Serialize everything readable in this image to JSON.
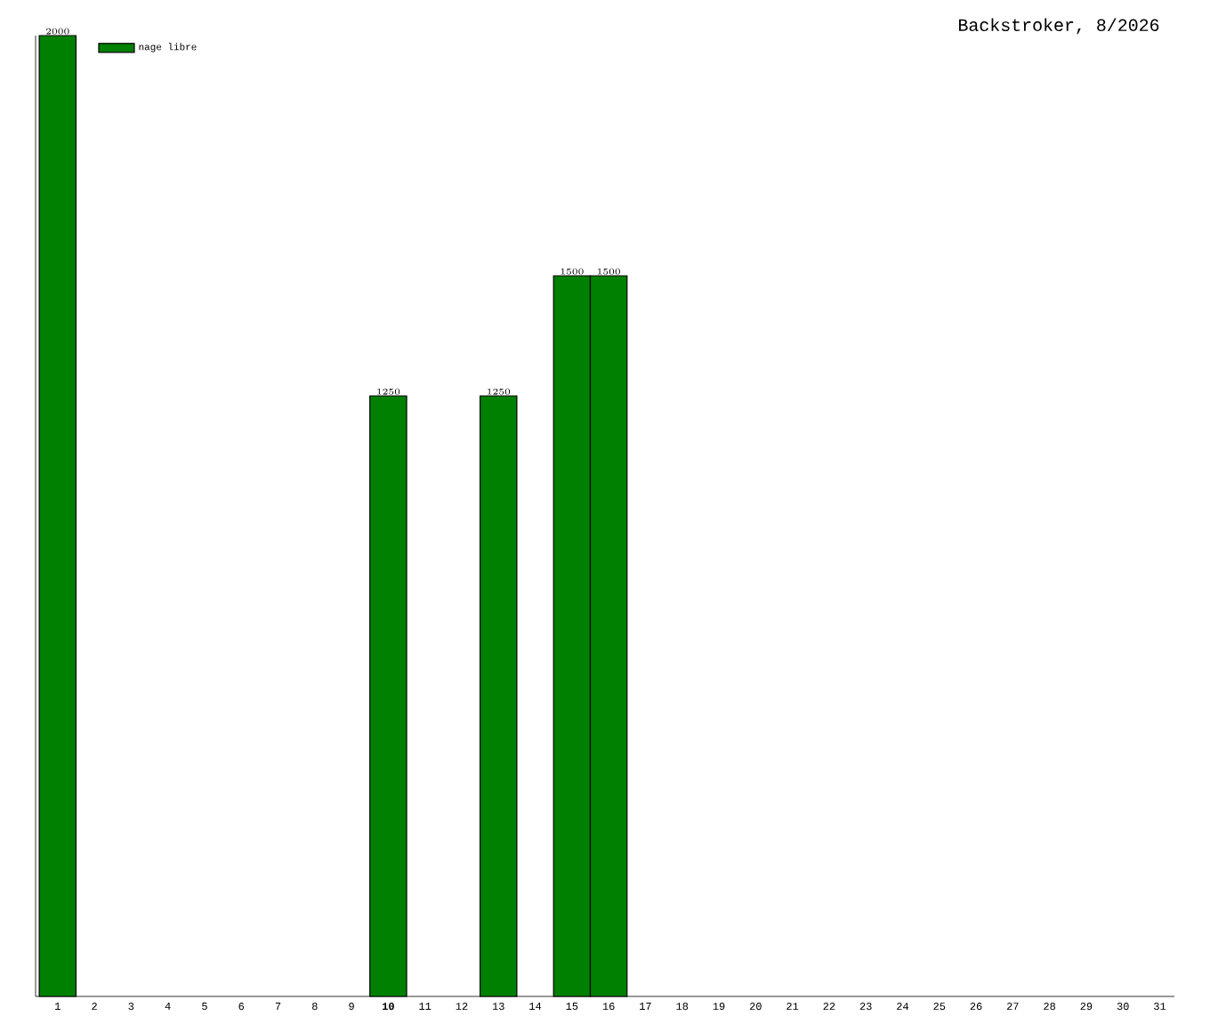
{
  "chart_data": {
    "type": "bar",
    "title": "Backstroker, 8/2026",
    "categories": [
      "1",
      "2",
      "3",
      "4",
      "5",
      "6",
      "7",
      "8",
      "9",
      "**10**",
      "11",
      "12",
      "13",
      "14",
      "15",
      "16",
      "17",
      "18",
      "19",
      "20",
      "21",
      "22",
      "23",
      "24",
      "25",
      "26",
      "27",
      "28",
      "29",
      "30",
      "31"
    ],
    "series": [
      {
        "name": "nage libre",
        "color": "#008000",
        "values": [
          2000,
          null,
          null,
          null,
          null,
          null,
          null,
          null,
          null,
          1250,
          null,
          null,
          1250,
          null,
          1500,
          1500,
          null,
          null,
          null,
          null,
          null,
          null,
          null,
          null,
          null,
          null,
          null,
          null,
          null,
          null,
          null
        ]
      }
    ],
    "tick_labels": "x",
    "data_labels": true,
    "legend": "top left"
  }
}
